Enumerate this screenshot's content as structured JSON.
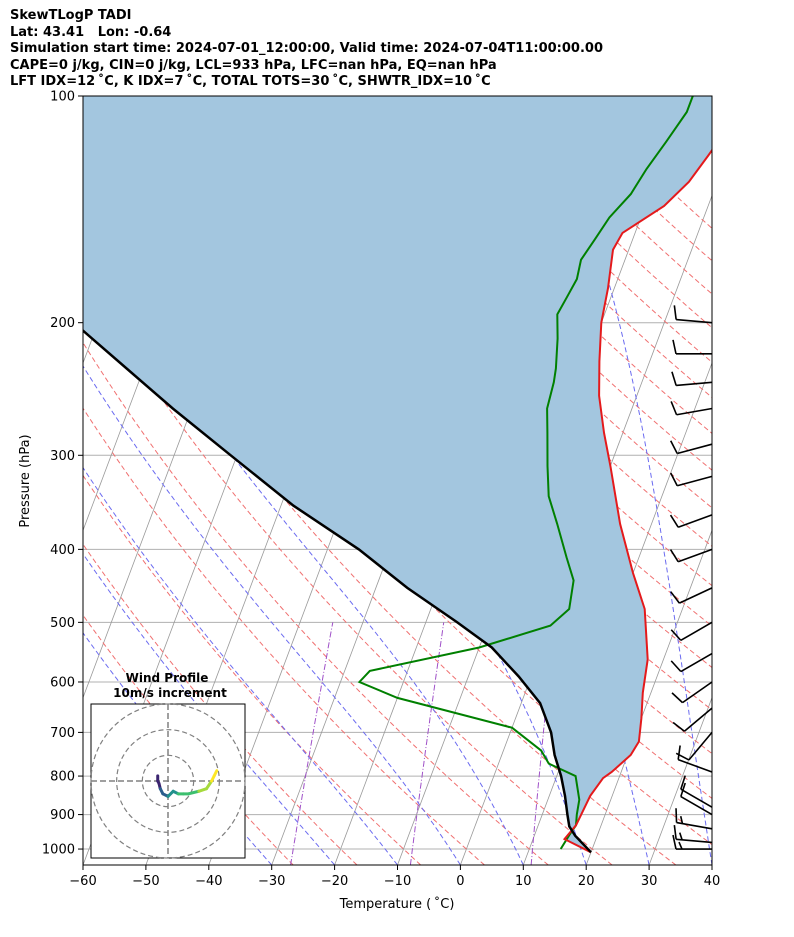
{
  "header": {
    "line1": "SkewTLogP TADI",
    "line2": "Lat: 43.41   Lon: -0.64",
    "line3": "Simulation start time: 2024-07-01_12:00:00, Valid time: 2024-07-04T11:00:00.00",
    "line4": "CAPE=0 j/kg, CIN=0 j/kg, LCL=933 hPa, LFC=nan hPa, EQ=nan hPa",
    "line5": "LFT IDX=12 ˚C, K IDX=7 ˚C, TOTAL TOTS=30 ˚C, SHWTR_IDX=10 ˚C"
  },
  "chart_data": {
    "type": "skew-t",
    "xlabel": "Temperature ( ˚C)",
    "ylabel": "Pressure (hPa)",
    "xlim": [
      -60,
      40
    ],
    "ylim": [
      1050,
      100
    ],
    "grid": true,
    "x_ticks": [
      -60,
      -50,
      -40,
      -30,
      -20,
      -10,
      0,
      10,
      20,
      30,
      40
    ],
    "x_tick_labels": [
      "−60",
      "−50",
      "−40",
      "−30",
      "−20",
      "−10",
      "0",
      "10",
      "20",
      "30",
      "40"
    ],
    "y_ticks": [
      1000,
      900,
      800,
      700,
      600,
      500,
      400,
      300,
      200,
      100
    ],
    "y_tick_labels": [
      "1000",
      "900",
      "800",
      "700",
      "600",
      "500",
      "400",
      "300",
      "200",
      "100"
    ],
    "skew_deg_per_decade": 45,
    "series": [
      {
        "name": "temperature",
        "color": "#e41a1c",
        "points": [
          [
            20,
            1010
          ],
          [
            15,
            970
          ],
          [
            16,
            930
          ],
          [
            16.2,
            900
          ],
          [
            16.5,
            850
          ],
          [
            17.5,
            805
          ],
          [
            18.5,
            790
          ],
          [
            20.5,
            750
          ],
          [
            21,
            720
          ],
          [
            20,
            670
          ],
          [
            18.7,
            620
          ],
          [
            17.5,
            560
          ],
          [
            14,
            480
          ],
          [
            10,
            430
          ],
          [
            5,
            370
          ],
          [
            0,
            310
          ],
          [
            -3,
            280
          ],
          [
            -6,
            250
          ],
          [
            -8,
            225
          ],
          [
            -10,
            200
          ],
          [
            -11,
            180
          ],
          [
            -12.5,
            160
          ],
          [
            -12,
            152
          ],
          [
            -7,
            140
          ],
          [
            -4.5,
            130
          ],
          [
            -3,
            120
          ],
          [
            -1.5,
            110
          ],
          [
            -0.5,
            105
          ],
          [
            0.5,
            100
          ]
        ]
      },
      {
        "name": "dewpoint",
        "color": "#008000",
        "points": [
          [
            15,
            1000
          ],
          [
            15.5,
            960
          ],
          [
            16,
            930
          ],
          [
            15.5,
            900
          ],
          [
            15,
            860
          ],
          [
            13,
            800
          ],
          [
            8,
            770
          ],
          [
            6,
            740
          ],
          [
            0,
            690
          ],
          [
            -20,
            630
          ],
          [
            -27,
            600
          ],
          [
            -26,
            580
          ],
          [
            -10,
            540
          ],
          [
            0,
            505
          ],
          [
            2,
            480
          ],
          [
            1,
            440
          ],
          [
            -1.5,
            410
          ],
          [
            -5,
            370
          ],
          [
            -8,
            340
          ],
          [
            -10,
            310
          ],
          [
            -12,
            280
          ],
          [
            -13.5,
            260
          ],
          [
            -14,
            240
          ],
          [
            -14.5,
            230
          ],
          [
            -16,
            210
          ],
          [
            -17.5,
            195
          ],
          [
            -17,
            185
          ],
          [
            -16.5,
            175
          ],
          [
            -17,
            165
          ],
          [
            -16,
            155
          ],
          [
            -15,
            145
          ],
          [
            -13,
            135
          ],
          [
            -12,
            125
          ],
          [
            -10.5,
            115
          ],
          [
            -9,
            105
          ],
          [
            -9,
            100
          ]
        ]
      },
      {
        "name": "parcel",
        "color": "#000000",
        "points": [
          [
            20,
            1010
          ],
          [
            16.5,
            960
          ],
          [
            15,
            933
          ],
          [
            14,
            900
          ],
          [
            12.5,
            850
          ],
          [
            10.7,
            800
          ],
          [
            8.4,
            750
          ],
          [
            6.5,
            700
          ],
          [
            3,
            640
          ],
          [
            -2,
            590
          ],
          [
            -8,
            540
          ],
          [
            -15,
            500
          ],
          [
            -25,
            450
          ],
          [
            -35,
            400
          ],
          [
            -48,
            350
          ],
          [
            -61,
            300
          ],
          [
            -73,
            260
          ],
          [
            -90,
            210
          ],
          [
            -100,
            185
          ],
          [
            -111,
            160
          ],
          [
            -121,
            140
          ],
          [
            -133,
            120
          ],
          [
            -141,
            108
          ],
          [
            -147,
            100
          ]
        ]
      }
    ],
    "cape_fill_color": "#a3c6df",
    "isotherm_color": "#999999",
    "dry_adiabat_color": "#f07070",
    "moist_adiabat_color": "#6b6bf0",
    "mixing_ratio_color": "#9f50c8",
    "wind_barbs": [
      {
        "pressure": 1000,
        "speed_kt": 15,
        "direction": 270
      },
      {
        "pressure": 980,
        "speed_kt": 15,
        "direction": 275
      },
      {
        "pressure": 940,
        "speed_kt": 15,
        "direction": 280
      },
      {
        "pressure": 900,
        "speed_kt": 10,
        "direction": 300
      },
      {
        "pressure": 880,
        "speed_kt": 10,
        "direction": 300
      },
      {
        "pressure": 790,
        "speed_kt": 10,
        "direction": 290
      },
      {
        "pressure": 700,
        "speed_kt": 10,
        "direction": 220
      },
      {
        "pressure": 650,
        "speed_kt": 10,
        "direction": 230
      },
      {
        "pressure": 600,
        "speed_kt": 10,
        "direction": 235
      },
      {
        "pressure": 550,
        "speed_kt": 10,
        "direction": 240
      },
      {
        "pressure": 500,
        "speed_kt": 10,
        "direction": 240
      },
      {
        "pressure": 450,
        "speed_kt": 10,
        "direction": 245
      },
      {
        "pressure": 400,
        "speed_kt": 10,
        "direction": 250
      },
      {
        "pressure": 360,
        "speed_kt": 10,
        "direction": 250
      },
      {
        "pressure": 320,
        "speed_kt": 10,
        "direction": 255
      },
      {
        "pressure": 290,
        "speed_kt": 10,
        "direction": 255
      },
      {
        "pressure": 260,
        "speed_kt": 10,
        "direction": 260
      },
      {
        "pressure": 240,
        "speed_kt": 10,
        "direction": 265
      },
      {
        "pressure": 220,
        "speed_kt": 10,
        "direction": 270
      },
      {
        "pressure": 200,
        "speed_kt": 10,
        "direction": 275
      }
    ],
    "hodograph": {
      "title_line1": "Wind Profile",
      "title_line2": "10m/s increment",
      "ring_interval_ms": 10,
      "range_ms": 30,
      "trace_colors": [
        "#3b2570",
        "#2b5d8c",
        "#22908c",
        "#3cbf6e",
        "#a6da3d",
        "#fde725"
      ],
      "points": [
        [
          -4,
          2
        ],
        [
          -4,
          0
        ],
        [
          -3.5,
          -1
        ],
        [
          -3,
          -3
        ],
        [
          -2,
          -5
        ],
        [
          0,
          -6
        ],
        [
          2,
          -4
        ],
        [
          4,
          -5
        ],
        [
          6,
          -5
        ],
        [
          8,
          -5
        ],
        [
          12,
          -4
        ],
        [
          15,
          -3
        ],
        [
          17,
          0
        ],
        [
          18,
          2
        ],
        [
          19,
          4
        ]
      ]
    }
  }
}
